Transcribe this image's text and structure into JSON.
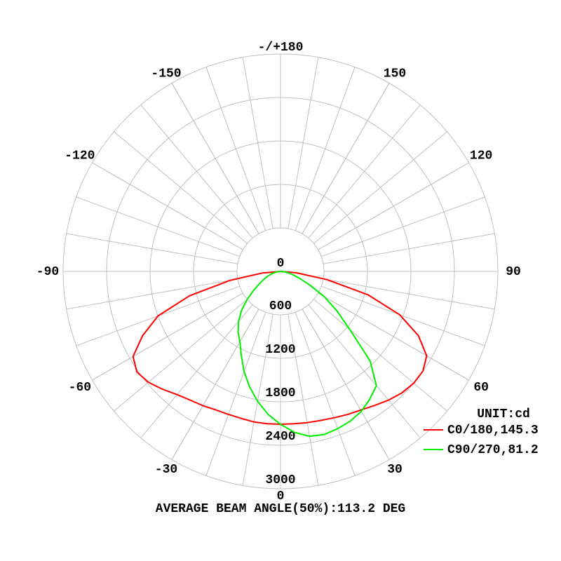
{
  "chart_data": {
    "type": "polar",
    "title": "AVERAGE BEAM ANGLE(50%):113.2 DEG",
    "legend_title": "UNIT:cd",
    "rlim": [
      0,
      3000
    ],
    "rticks": [
      0,
      600,
      1200,
      1800,
      2400,
      3000
    ],
    "angle_ticks": [
      {
        "value": 180,
        "label": "-/+180"
      },
      150,
      120,
      90,
      60,
      30,
      0,
      -30,
      -60,
      -90,
      -120,
      -150
    ],
    "grid": true,
    "x": [
      -90,
      -85,
      -80,
      -75,
      -70,
      -65,
      -60,
      -55,
      -50,
      -45,
      -40,
      -35,
      -30,
      -25,
      -20,
      -15,
      -10,
      -5,
      0,
      5,
      10,
      15,
      20,
      25,
      30,
      35,
      40,
      45,
      50,
      55,
      60,
      65,
      70,
      75,
      80,
      85,
      90
    ],
    "series": [
      {
        "name": "C0/180,145.3",
        "color": "#ff0000",
        "values": [
          0,
          250,
          700,
          1300,
          1800,
          2100,
          2350,
          2420,
          2380,
          2300,
          2220,
          2170,
          2140,
          2110,
          2100,
          2100,
          2110,
          2110,
          2110,
          2110,
          2120,
          2130,
          2150,
          2180,
          2210,
          2260,
          2320,
          2370,
          2400,
          2400,
          2330,
          2100,
          1750,
          1250,
          650,
          220,
          0
        ]
      },
      {
        "name": "C90/270,81.2",
        "color": "#00ee00",
        "values": [
          0,
          30,
          60,
          120,
          180,
          250,
          330,
          450,
          600,
          760,
          900,
          1020,
          1120,
          1280,
          1470,
          1650,
          1820,
          1980,
          2110,
          2230,
          2310,
          2330,
          2310,
          2280,
          2230,
          2150,
          2060,
          1750,
          1250,
          950,
          700,
          450,
          280,
          170,
          100,
          50,
          0
        ]
      }
    ]
  }
}
